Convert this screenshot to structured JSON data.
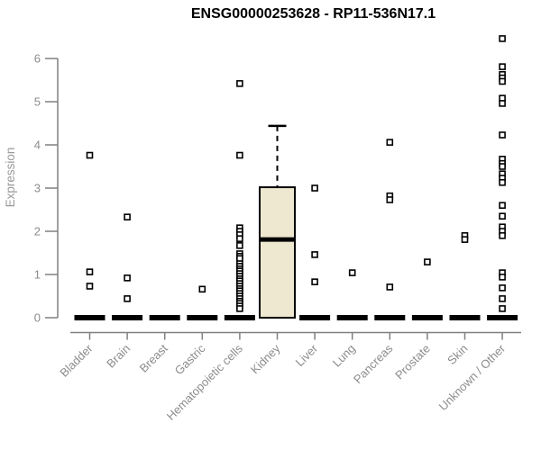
{
  "chart_data": {
    "type": "boxplot",
    "title": "ENSG00000253628 - RP11-536N17.1",
    "xlabel": "",
    "ylabel": "Expression",
    "ylim": [
      0,
      6.6
    ],
    "yticks": [
      0,
      1,
      2,
      3,
      4,
      5,
      6
    ],
    "grid": false,
    "legend": "none",
    "categories": [
      "Bladder",
      "Brain",
      "Breast",
      "Gastric",
      "Hematopoietic cells",
      "Kidney",
      "Liver",
      "Lung",
      "Pancreas",
      "Prostate",
      "Skin",
      "Unknown / Other"
    ],
    "boxes": [
      {
        "category": "Bladder",
        "q1": 0,
        "median": 0,
        "q3": 0,
        "whisker_low": 0,
        "whisker_high": 0,
        "outliers": [
          3.76,
          1.06,
          0.73
        ]
      },
      {
        "category": "Brain",
        "q1": 0,
        "median": 0,
        "q3": 0,
        "whisker_low": 0,
        "whisker_high": 0,
        "outliers": [
          2.33,
          0.92,
          0.44
        ]
      },
      {
        "category": "Breast",
        "q1": 0,
        "median": 0,
        "q3": 0,
        "whisker_low": 0,
        "whisker_high": 0,
        "outliers": []
      },
      {
        "category": "Gastric",
        "q1": 0,
        "median": 0,
        "q3": 0,
        "whisker_low": 0,
        "whisker_high": 0,
        "outliers": [
          0.66
        ]
      },
      {
        "category": "Hematopoietic cells",
        "q1": 0,
        "median": 0,
        "q3": 0,
        "whisker_low": 0,
        "whisker_high": 0,
        "outliers": [
          5.42,
          3.76,
          2.08,
          2.0,
          1.92,
          1.83,
          1.67,
          1.48,
          1.42,
          1.37,
          1.25,
          1.19,
          1.13,
          1.08,
          1.02,
          0.96,
          0.9,
          0.85,
          0.79,
          0.73,
          0.67,
          0.62,
          0.56,
          0.5,
          0.44,
          0.38,
          0.33,
          0.27,
          0.21
        ]
      },
      {
        "category": "Kidney",
        "q1": 0,
        "median": 1.81,
        "q3": 3.02,
        "whisker_low": 0,
        "whisker_high": 4.44,
        "outliers": []
      },
      {
        "category": "Liver",
        "q1": 0,
        "median": 0,
        "q3": 0,
        "whisker_low": 0,
        "whisker_high": 0,
        "outliers": [
          3.0,
          1.46,
          0.83
        ]
      },
      {
        "category": "Lung",
        "q1": 0,
        "median": 0,
        "q3": 0,
        "whisker_low": 0,
        "whisker_high": 0,
        "outliers": [
          1.04
        ]
      },
      {
        "category": "Pancreas",
        "q1": 0,
        "median": 0,
        "q3": 0,
        "whisker_low": 0,
        "whisker_high": 0,
        "outliers": [
          4.06,
          2.82,
          2.73,
          0.71
        ]
      },
      {
        "category": "Prostate",
        "q1": 0,
        "median": 0,
        "q3": 0,
        "whisker_low": 0,
        "whisker_high": 0,
        "outliers": [
          1.29
        ]
      },
      {
        "category": "Skin",
        "q1": 0,
        "median": 0,
        "q3": 0,
        "whisker_low": 0,
        "whisker_high": 0,
        "outliers": [
          1.9,
          1.81
        ]
      },
      {
        "category": "Unknown / Other",
        "q1": 0,
        "median": 0,
        "q3": 0,
        "whisker_low": 0,
        "whisker_high": 0,
        "outliers": [
          6.46,
          5.81,
          5.63,
          5.55,
          5.47,
          5.08,
          4.96,
          4.23,
          3.67,
          3.57,
          3.5,
          3.33,
          3.23,
          3.13,
          2.6,
          2.35,
          2.1,
          2.0,
          1.9,
          1.04,
          0.94,
          0.69,
          0.44,
          0.21
        ]
      }
    ],
    "colors": {
      "box_fill": "#EDE8CF",
      "box_border": "#000000",
      "median": "#000000",
      "zero_bar": "#000000",
      "point_stroke": "#000000",
      "point_fill": "#ffffff",
      "axis_line": "#808080",
      "tick_label": "#8c8c8c",
      "axis_label": "#999999",
      "title": "#000000"
    }
  }
}
